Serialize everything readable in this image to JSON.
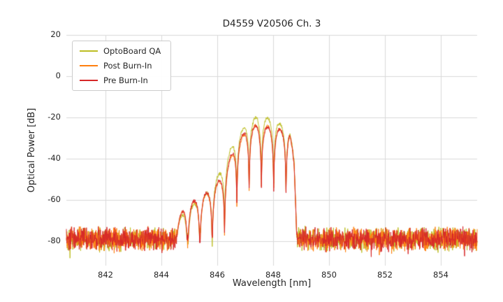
{
  "title": "D4559 V20506 Ch. 3",
  "chart_data": {
    "type": "line",
    "title": "D4559 V20506 Ch. 3",
    "xlabel": "Wavelength [nm]",
    "ylabel": "Optical Power [dB]",
    "xlim": [
      840.6,
      855.3
    ],
    "ylim": [
      -92,
      20
    ],
    "x_ticks": [
      842,
      844,
      846,
      848,
      850,
      852,
      854
    ],
    "y_ticks": [
      20,
      0,
      -20,
      -40,
      -60,
      -80
    ],
    "grid": true,
    "legend_position": "upper left",
    "noise_floor_db": -79,
    "noise_amplitude_db": 6.5,
    "mode_spacing_nm": 0.44,
    "mode_phase_nm": 847.36,
    "signal_range_nm": [
      844.55,
      848.85
    ],
    "description": "Optical spectrum with noise floor near -80 dB and a multimode laser peak structure between ~844.6 and ~848.8 nm, mode spacing ~0.44 nm, maximum ~-20 dB near 847.5 nm",
    "series": [
      {
        "name": "OptoBoard QA",
        "color": "#bcbd22",
        "peak_db": -19.5,
        "seed": 101,
        "envelope": [
          [
            844.5,
            -72
          ],
          [
            844.82,
            -66
          ],
          [
            845.28,
            -61
          ],
          [
            845.75,
            -55
          ],
          [
            846.2,
            -44
          ],
          [
            846.65,
            -30
          ],
          [
            847.1,
            -22.5
          ],
          [
            847.45,
            -19.5
          ],
          [
            847.9,
            -20.5
          ],
          [
            848.3,
            -23.5
          ],
          [
            848.6,
            -26.5
          ],
          [
            848.75,
            -40
          ],
          [
            848.85,
            -72
          ]
        ]
      },
      {
        "name": "Post Burn-In",
        "color": "#ff7f0e",
        "peak_db": -23.5,
        "seed": 202,
        "envelope": [
          [
            844.5,
            -72
          ],
          [
            844.82,
            -64
          ],
          [
            845.28,
            -60
          ],
          [
            845.75,
            -56
          ],
          [
            846.2,
            -49
          ],
          [
            846.65,
            -34
          ],
          [
            847.1,
            -25.5
          ],
          [
            847.45,
            -23.5
          ],
          [
            847.9,
            -24.5
          ],
          [
            848.3,
            -26
          ],
          [
            848.6,
            -27
          ],
          [
            848.75,
            -42
          ],
          [
            848.85,
            -72
          ]
        ]
      },
      {
        "name": "Pre Burn-In",
        "color": "#d62728",
        "peak_db": -24,
        "seed": 303,
        "envelope": [
          [
            844.5,
            -72
          ],
          [
            844.82,
            -64
          ],
          [
            845.28,
            -59.5
          ],
          [
            845.75,
            -55.5
          ],
          [
            846.2,
            -48.5
          ],
          [
            846.65,
            -33
          ],
          [
            847.1,
            -25
          ],
          [
            847.45,
            -24
          ],
          [
            847.9,
            -25
          ],
          [
            848.3,
            -26
          ],
          [
            848.6,
            -27
          ],
          [
            848.75,
            -42
          ],
          [
            848.85,
            -72
          ]
        ]
      }
    ]
  }
}
